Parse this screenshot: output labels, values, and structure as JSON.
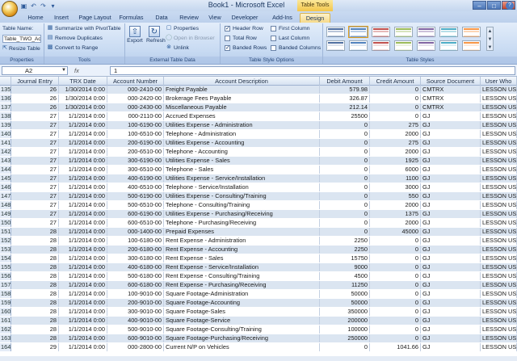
{
  "window": {
    "title": "Book1 - Microsoft Excel",
    "context_group": "Table Tools"
  },
  "tabs": [
    "Home",
    "Insert",
    "Page Layout",
    "Formulas",
    "Data",
    "Review",
    "View",
    "Developer",
    "Add-Ins",
    "Design"
  ],
  "active_tab": "Design",
  "ribbon": {
    "properties": {
      "label": "Properties",
      "table_name_label": "Table Name:",
      "table_name_value": "Table_TWO_Acco",
      "resize": "Resize Table"
    },
    "tools": {
      "label": "Tools",
      "items": [
        "Summarize with PivotTable",
        "Remove Duplicates",
        "Convert to Range"
      ]
    },
    "external": {
      "label": "External Table Data",
      "export": "Export",
      "refresh": "Refresh",
      "items": [
        "Properties",
        "Open in Browser",
        "Unlink"
      ]
    },
    "style_options": {
      "label": "Table Style Options",
      "options": [
        {
          "label": "Header Row",
          "checked": true
        },
        {
          "label": "Total Row",
          "checked": false
        },
        {
          "label": "Banded Rows",
          "checked": true
        },
        {
          "label": "First Column",
          "checked": false
        },
        {
          "label": "Last Column",
          "checked": false
        },
        {
          "label": "Banded Columns",
          "checked": false
        }
      ]
    },
    "styles": {
      "label": "Table Styles",
      "swatch_colors": [
        "#4f6fa0",
        "#4f81bd",
        "#c0504d",
        "#9bbb59",
        "#8064a2",
        "#4bacc6",
        "#f79646"
      ]
    }
  },
  "formula_bar": {
    "name_box": "A2",
    "fx": "fx",
    "value": "1"
  },
  "columns": [
    "Journal Entry",
    "TRX Date",
    "Account Number",
    "Account Description",
    "Debit Amount",
    "Credit Amount",
    "Source Document",
    "User Who"
  ],
  "rows": [
    [
      "135",
      "26",
      "1/30/2014 0:00",
      "000-2410-00",
      "Freight Payable",
      "579.98",
      "0",
      "CMTRX",
      "LESSON USE"
    ],
    [
      "136",
      "26",
      "1/30/2014 0:00",
      "000-2420-00",
      "Brokerage Fees Payable",
      "326.87",
      "0",
      "CMTRX",
      "LESSON USE"
    ],
    [
      "137",
      "26",
      "1/30/2014 0:00",
      "000-2430-00",
      "Miscellaneous Payable",
      "212.14",
      "0",
      "CMTRX",
      "LESSON USE"
    ],
    [
      "138",
      "27",
      "1/1/2014 0:00",
      "000-2110-00",
      "Accrued Expenses",
      "25500",
      "0",
      "GJ",
      "LESSON USE"
    ],
    [
      "139",
      "27",
      "1/1/2014 0:00",
      "100-6190-00",
      "Utilities Expense - Administration",
      "0",
      "275",
      "GJ",
      "LESSON USE"
    ],
    [
      "140",
      "27",
      "1/1/2014 0:00",
      "100-6510-00",
      "Telephone - Administration",
      "0",
      "2000",
      "GJ",
      "LESSON USE"
    ],
    [
      "141",
      "27",
      "1/1/2014 0:00",
      "200-6190-00",
      "Utilities Expense - Accounting",
      "0",
      "275",
      "GJ",
      "LESSON USE"
    ],
    [
      "142",
      "27",
      "1/1/2014 0:00",
      "200-6510-00",
      "Telephone - Accounting",
      "0",
      "2000",
      "GJ",
      "LESSON USE"
    ],
    [
      "143",
      "27",
      "1/1/2014 0:00",
      "300-6190-00",
      "Utilities Expense - Sales",
      "0",
      "1925",
      "GJ",
      "LESSON USE"
    ],
    [
      "144",
      "27",
      "1/1/2014 0:00",
      "300-6510-00",
      "Telephone - Sales",
      "0",
      "6000",
      "GJ",
      "LESSON USE"
    ],
    [
      "145",
      "27",
      "1/1/2014 0:00",
      "400-6190-00",
      "Utilities Expense - Service/Installation",
      "0",
      "1100",
      "GJ",
      "LESSON USE"
    ],
    [
      "146",
      "27",
      "1/1/2014 0:00",
      "400-6510-00",
      "Telephone - Service/Installation",
      "0",
      "3000",
      "GJ",
      "LESSON USE"
    ],
    [
      "147",
      "27",
      "1/1/2014 0:00",
      "500-6190-00",
      "Utilities Expense - Consulting/Training",
      "0",
      "550",
      "GJ",
      "LESSON USE"
    ],
    [
      "148",
      "27",
      "1/1/2014 0:00",
      "500-6510-00",
      "Telephone - Consulting/Training",
      "0",
      "2000",
      "GJ",
      "LESSON USE"
    ],
    [
      "149",
      "27",
      "1/1/2014 0:00",
      "600-6190-00",
      "Utilities Expense - Purchasing/Receiving",
      "0",
      "1375",
      "GJ",
      "LESSON USE"
    ],
    [
      "150",
      "27",
      "1/1/2014 0:00",
      "600-6510-00",
      "Telephone - Purchasing/Receiving",
      "0",
      "2000",
      "GJ",
      "LESSON USE"
    ],
    [
      "151",
      "28",
      "1/1/2014 0:00",
      "000-1400-00",
      "Prepaid Expenses",
      "0",
      "45000",
      "GJ",
      "LESSON USE"
    ],
    [
      "152",
      "28",
      "1/1/2014 0:00",
      "100-6180-00",
      "Rent Expense - Administration",
      "2250",
      "0",
      "GJ",
      "LESSON USE"
    ],
    [
      "153",
      "28",
      "1/1/2014 0:00",
      "200-6180-00",
      "Rent Expense - Accounting",
      "2250",
      "0",
      "GJ",
      "LESSON USE"
    ],
    [
      "154",
      "28",
      "1/1/2014 0:00",
      "300-6180-00",
      "Rent Expense - Sales",
      "15750",
      "0",
      "GJ",
      "LESSON USE"
    ],
    [
      "155",
      "28",
      "1/1/2014 0:00",
      "400-6180-00",
      "Rent Expense - Service/Installation",
      "9000",
      "0",
      "GJ",
      "LESSON USE"
    ],
    [
      "156",
      "28",
      "1/1/2014 0:00",
      "500-6180-00",
      "Rent Expense - Consulting/Training",
      "4500",
      "0",
      "GJ",
      "LESSON USE"
    ],
    [
      "157",
      "28",
      "1/1/2014 0:00",
      "600-6180-00",
      "Rent Expense - Purchasing/Receiving",
      "11250",
      "0",
      "GJ",
      "LESSON USE"
    ],
    [
      "158",
      "28",
      "1/1/2014 0:00",
      "100-9010-00",
      "Square Footage-Administration",
      "50000",
      "0",
      "GJ",
      "LESSON USE"
    ],
    [
      "159",
      "28",
      "1/1/2014 0:00",
      "200-9010-00",
      "Square Footage-Accounting",
      "50000",
      "0",
      "GJ",
      "LESSON USE"
    ],
    [
      "160",
      "28",
      "1/1/2014 0:00",
      "300-9010-00",
      "Square Footage-Sales",
      "350000",
      "0",
      "GJ",
      "LESSON USE"
    ],
    [
      "161",
      "28",
      "1/1/2014 0:00",
      "400-9010-00",
      "Square Footage-Service",
      "200000",
      "0",
      "GJ",
      "LESSON USE"
    ],
    [
      "162",
      "28",
      "1/1/2014 0:00",
      "500-9010-00",
      "Square Footage-Consulting/Training",
      "100000",
      "0",
      "GJ",
      "LESSON USE"
    ],
    [
      "163",
      "28",
      "1/1/2014 0:00",
      "600-9010-00",
      "Square Footage-Purchasing/Receiving",
      "250000",
      "0",
      "GJ",
      "LESSON USE"
    ],
    [
      "164",
      "29",
      "1/1/2014 0:00",
      "000-2800-00",
      "Current N/P on Vehicles",
      "0",
      "1041.66",
      "GJ",
      "LESSON USE"
    ]
  ]
}
